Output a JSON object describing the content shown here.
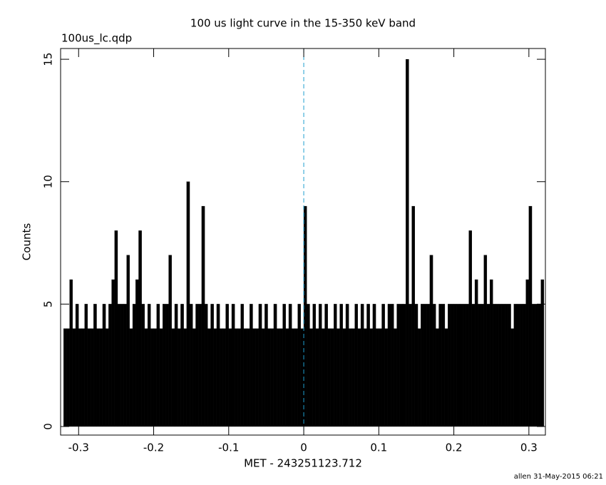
{
  "chart_data": {
    "type": "histogram",
    "title": "100 us light curve in the 15-350 keV band",
    "subtitle": "100us_lc.qdp",
    "x_label": "MET - 243251123.712",
    "y_label": "Counts",
    "footer": "allen 31-May-2015 06:21",
    "color": "#000000",
    "vline": 0,
    "vline_color": "#1f9fd0",
    "bins": [
      -0.32,
      -0.316,
      -0.312,
      -0.308,
      -0.304,
      -0.3,
      -0.296,
      -0.292,
      -0.288,
      -0.284,
      -0.28,
      -0.276,
      -0.272,
      -0.268,
      -0.264,
      -0.26,
      -0.256,
      -0.252,
      -0.248,
      -0.244,
      -0.24,
      -0.236,
      -0.232,
      -0.228,
      -0.224,
      -0.22,
      -0.216,
      -0.212,
      -0.208,
      -0.204,
      -0.2,
      -0.196,
      -0.192,
      -0.188,
      -0.184,
      -0.18,
      -0.176,
      -0.172,
      -0.168,
      -0.164,
      -0.16,
      -0.156,
      -0.152,
      -0.148,
      -0.144,
      -0.14,
      -0.136,
      -0.132,
      -0.128,
      -0.124,
      -0.12,
      -0.116,
      -0.112,
      -0.108,
      -0.104,
      -0.1,
      -0.096,
      -0.092,
      -0.088,
      -0.084,
      -0.08,
      -0.076,
      -0.072,
      -0.068,
      -0.064,
      -0.06,
      -0.056,
      -0.052,
      -0.048,
      -0.044,
      -0.04,
      -0.036,
      -0.032,
      -0.028,
      -0.024,
      -0.02,
      -0.016,
      -0.012,
      -0.008,
      -0.004,
      0,
      0.004,
      0.008,
      0.012,
      0.016,
      0.02,
      0.024,
      0.028,
      0.032,
      0.036,
      0.04,
      0.044,
      0.048,
      0.052,
      0.056,
      0.06,
      0.064,
      0.068,
      0.072,
      0.076,
      0.08,
      0.084,
      0.088,
      0.092,
      0.096,
      0.1,
      0.104,
      0.108,
      0.112,
      0.116,
      0.12,
      0.124,
      0.128,
      0.132,
      0.136,
      0.14,
      0.144,
      0.148,
      0.152,
      0.156,
      0.16,
      0.164,
      0.168,
      0.172,
      0.176,
      0.18,
      0.184,
      0.188,
      0.192,
      0.196,
      0.2,
      0.204,
      0.208,
      0.212,
      0.216,
      0.22,
      0.224,
      0.228,
      0.232,
      0.236,
      0.24,
      0.244,
      0.248,
      0.252,
      0.256,
      0.26,
      0.264,
      0.268,
      0.272,
      0.276,
      0.28,
      0.284,
      0.288,
      0.292,
      0.296,
      0.3,
      0.304,
      0.308,
      0.312,
      0.316,
      0.32
    ],
    "values": [
      4,
      4,
      6,
      4,
      5,
      4,
      4,
      5,
      4,
      4,
      5,
      4,
      4,
      5,
      4,
      5,
      6,
      8,
      5,
      5,
      5,
      7,
      4,
      5,
      6,
      8,
      5,
      4,
      5,
      4,
      4,
      5,
      4,
      5,
      5,
      7,
      4,
      5,
      4,
      5,
      4,
      10,
      5,
      4,
      5,
      5,
      9,
      5,
      4,
      5,
      4,
      5,
      4,
      4,
      5,
      4,
      5,
      4,
      4,
      5,
      4,
      4,
      5,
      4,
      4,
      5,
      4,
      5,
      4,
      4,
      5,
      4,
      4,
      5,
      4,
      5,
      4,
      4,
      5,
      4,
      9,
      5,
      4,
      5,
      4,
      5,
      4,
      5,
      4,
      4,
      5,
      4,
      5,
      4,
      5,
      4,
      4,
      5,
      4,
      5,
      4,
      5,
      4,
      5,
      4,
      4,
      5,
      4,
      5,
      5,
      4,
      5,
      5,
      5,
      15,
      5,
      9,
      5,
      4,
      5,
      5,
      5,
      7,
      5,
      4,
      5,
      5,
      4,
      5,
      5,
      5,
      5,
      5,
      5,
      5,
      8,
      5,
      6,
      5,
      5,
      7,
      5,
      6,
      5,
      5,
      5,
      5,
      5,
      5,
      4,
      5,
      5,
      5,
      5,
      6,
      9,
      5,
      5,
      5,
      6
    ],
    "xlim": [
      -0.324,
      0.322
    ],
    "ylim": [
      -0.35,
      15.44
    ],
    "xticks": [
      -0.3,
      -0.2,
      -0.1,
      0,
      0.1,
      0.2,
      0.3
    ],
    "yticks": [
      0,
      5,
      10,
      15
    ]
  }
}
